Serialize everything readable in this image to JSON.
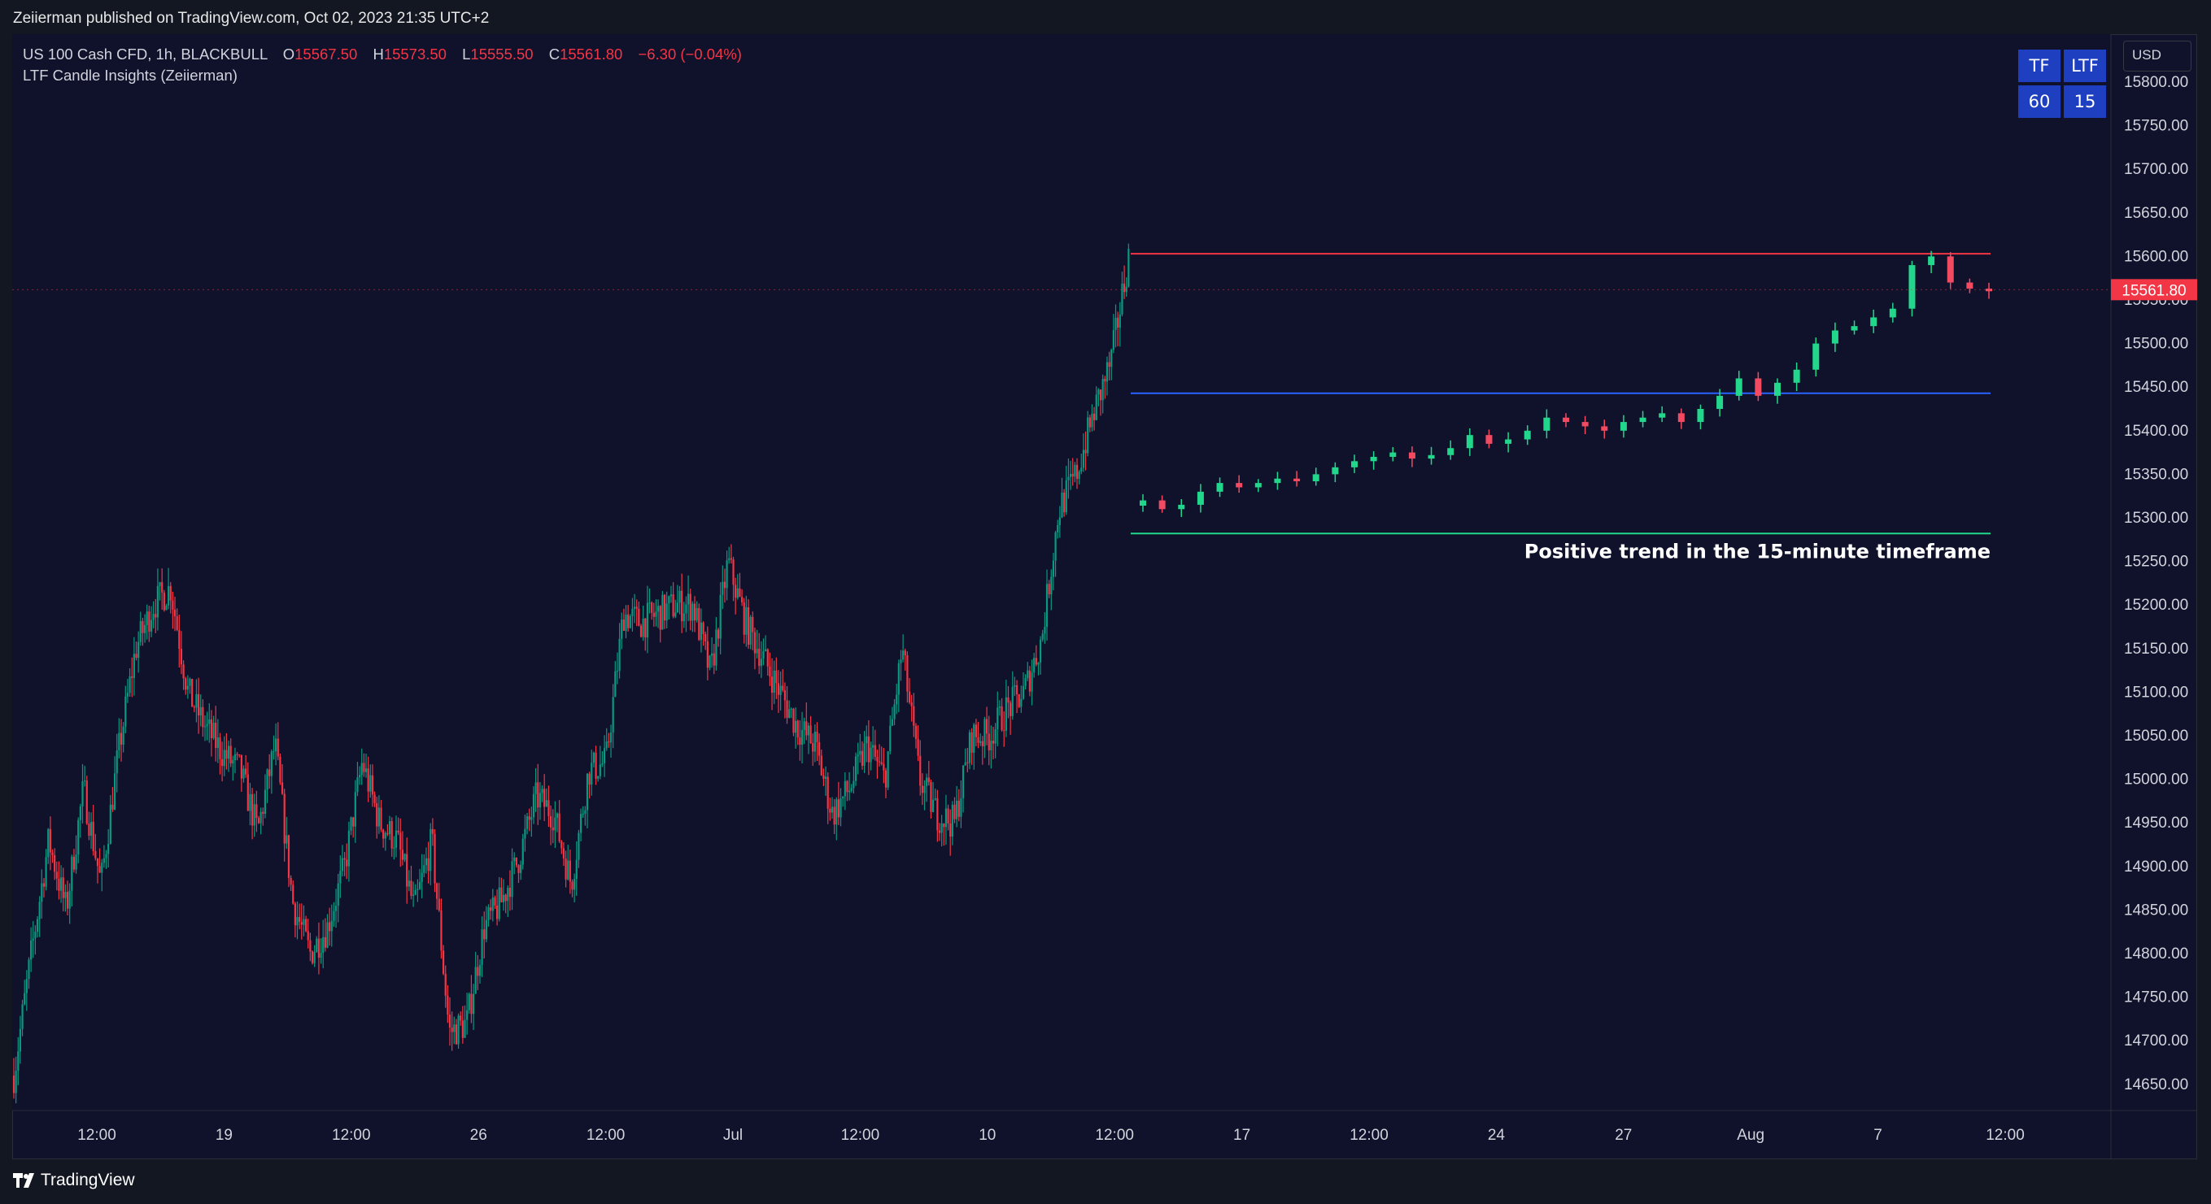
{
  "header": {
    "published_text": "Zeiierman published on TradingView.com, Oct 02, 2023 21:35 UTC+2"
  },
  "legend": {
    "symbol": "US 100 Cash CFD, 1h, BLACKBULL",
    "o_label": "O",
    "o": "15567.50",
    "h_label": "H",
    "h": "15573.50",
    "l_label": "L",
    "l": "15555.50",
    "c_label": "C",
    "c": "15561.80",
    "change": "−6.30 (−0.04%)",
    "indicator": "LTF Candle Insights (Zeiierman)"
  },
  "table": {
    "h1": "TF",
    "h2": "LTF",
    "v1": "60",
    "v2": "15"
  },
  "currency": "USD",
  "footer": {
    "logo_text": "TradingView"
  },
  "colors": {
    "bg": "#10122b",
    "up": "#089981",
    "down": "#f23645",
    "ltf_up": "#22d68b",
    "ltf_down": "#f24a61",
    "top_line": "#f23645",
    "mid_line": "#2962ff",
    "bottom_line": "#22d68b",
    "table_bg": "#1e3fbf"
  },
  "chart_data": {
    "type": "candlestick",
    "title": "US 100 Cash CFD, 1h, BLACKBULL",
    "ylim": [
      14620,
      15855
    ],
    "y_ticks": [
      "15800.00",
      "15750.00",
      "15700.00",
      "15650.00",
      "15600.00",
      "15550.00",
      "15500.00",
      "15450.00",
      "15400.00",
      "15350.00",
      "15300.00",
      "15250.00",
      "15200.00",
      "15150.00",
      "15100.00",
      "15050.00",
      "15000.00",
      "14950.00",
      "14900.00",
      "14850.00",
      "14800.00",
      "14750.00",
      "14700.00",
      "14650.00"
    ],
    "x_ticks": [
      "12:00",
      "19",
      "12:00",
      "26",
      "12:00",
      "Jul",
      "12:00",
      "10",
      "12:00",
      "17",
      "12:00",
      "24",
      "27",
      "Aug",
      "7",
      "12:00"
    ],
    "last_price": "15561.80",
    "price_path": [
      14660,
      14800,
      14930,
      14850,
      14990,
      14880,
      15030,
      15150,
      15200,
      15220,
      15100,
      15060,
      15030,
      15010,
      14940,
      15040,
      14860,
      14800,
      14830,
      14900,
      15020,
      14950,
      14930,
      14850,
      14930,
      14710,
      14720,
      14830,
      14860,
      14910,
      14980,
      14960,
      14880,
      15010,
      15020,
      15190,
      15180,
      15190,
      15200,
      15200,
      15120,
      15250,
      15180,
      15140,
      15100,
      15060,
      15040,
      14960,
      14990,
      15040,
      15000,
      15150,
      15000,
      14960,
      14950,
      15050,
      15050,
      15080,
      15100,
      15160,
      15310,
      15350,
      15420,
      15480,
      15600
    ],
    "ltf_section_label": "Positive trend in the 15-minute timeframe",
    "levels": {
      "high": 15603,
      "mid": 15443,
      "low": 15282
    },
    "ltf_path": [
      15320,
      15310,
      15315,
      15330,
      15340,
      15335,
      15340,
      15345,
      15342,
      15350,
      15358,
      15365,
      15370,
      15375,
      15368,
      15372,
      15380,
      15395,
      15385,
      15390,
      15400,
      15415,
      15410,
      15405,
      15400,
      15410,
      15415,
      15420,
      15410,
      15425,
      15440,
      15460,
      15440,
      15455,
      15470,
      15500,
      15515,
      15520,
      15530,
      15540,
      15590,
      15600,
      15570,
      15563,
      15560
    ]
  }
}
